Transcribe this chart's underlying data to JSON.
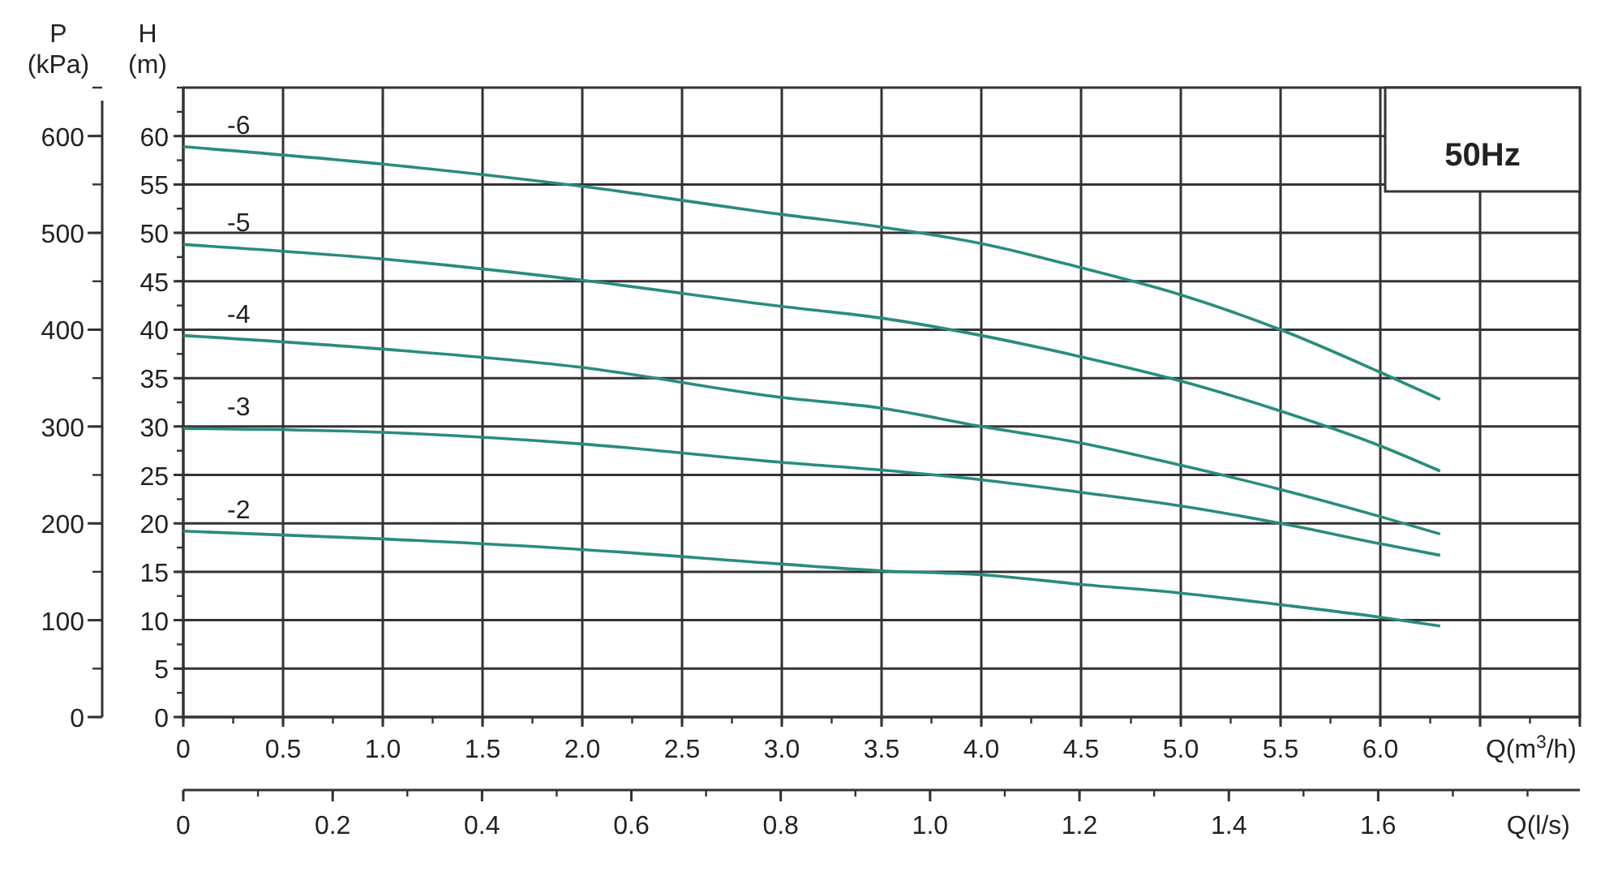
{
  "chart_data": {
    "type": "line",
    "xlabel": "Q(m$^{3}$/h)",
    "ylabel": "H (m)",
    "y2label": "P (kPa)",
    "x2label": "Q(l/s)",
    "annotations": [
      "50Hz"
    ],
    "x": [
      0,
      1,
      2,
      3,
      3.5,
      4,
      4.5,
      5,
      5.5,
      6,
      6.3
    ],
    "series": [
      {
        "name": "-6",
        "color": "#2a8c7c",
        "values": [
          58.9,
          57.1,
          54.8,
          51.9,
          50.6,
          48.9,
          46.4,
          43.6,
          40.0,
          35.6,
          32.8
        ]
      },
      {
        "name": "-5",
        "color": "#2a8c7c",
        "values": [
          48.8,
          47.3,
          45.1,
          42.4,
          41.2,
          39.4,
          37.2,
          34.7,
          31.6,
          28.0,
          25.4
        ]
      },
      {
        "name": "-4",
        "color": "#2a8c7c",
        "values": [
          39.4,
          38.0,
          36.1,
          33.0,
          31.9,
          30.0,
          28.3,
          26.0,
          23.5,
          20.7,
          18.9
        ]
      },
      {
        "name": "-3",
        "color": "#2a8c7c",
        "values": [
          29.8,
          29.4,
          28.2,
          26.3,
          25.5,
          24.5,
          23.2,
          21.8,
          20.0,
          17.9,
          16.7
        ]
      },
      {
        "name": "-2",
        "color": "#2a8c7c",
        "values": [
          19.2,
          18.4,
          17.3,
          15.8,
          15.1,
          14.7,
          13.7,
          12.8,
          11.6,
          10.3,
          9.4
        ]
      }
    ],
    "xlim": [
      0,
      7
    ],
    "xticks": [
      0,
      {
        "value": 0.5,
        "label": "0.5"
      },
      {
        "value": 1,
        "label": "1.0"
      },
      {
        "value": 1.5,
        "label": "1.5"
      },
      {
        "value": 2,
        "label": "2.0"
      },
      {
        "value": 2.5,
        "label": "2.5"
      },
      {
        "value": 3,
        "label": "3.0"
      },
      {
        "value": 3.5,
        "label": "3.5"
      },
      {
        "value": 4,
        "label": "4.0"
      },
      {
        "value": 4.5,
        "label": "4.5"
      },
      {
        "value": 5,
        "label": "5.0"
      },
      {
        "value": 5.5,
        "label": "5.5"
      },
      {
        "value": 6,
        "label": "6.0"
      },
      {
        "value": 6.5,
        "label": null
      },
      {
        "value": 7,
        "label": null
      }
    ],
    "x2lim": [
      0,
      1.87
    ],
    "x2ticks": [
      0,
      0.2,
      0.4,
      0.6,
      0.8,
      {
        "value": 1,
        "label": "1.0"
      },
      1.2,
      1.4,
      1.6
    ],
    "ylim": [
      0,
      65
    ],
    "yticks": [
      0,
      5,
      10,
      15,
      20,
      25,
      30,
      35,
      40,
      45,
      50,
      55,
      60
    ],
    "y2lim": [
      0,
      650
    ],
    "y2ticks": [
      0,
      100,
      200,
      300,
      400,
      500,
      600
    ],
    "grid": true,
    "marker": "none",
    "line_style": "solid"
  }
}
